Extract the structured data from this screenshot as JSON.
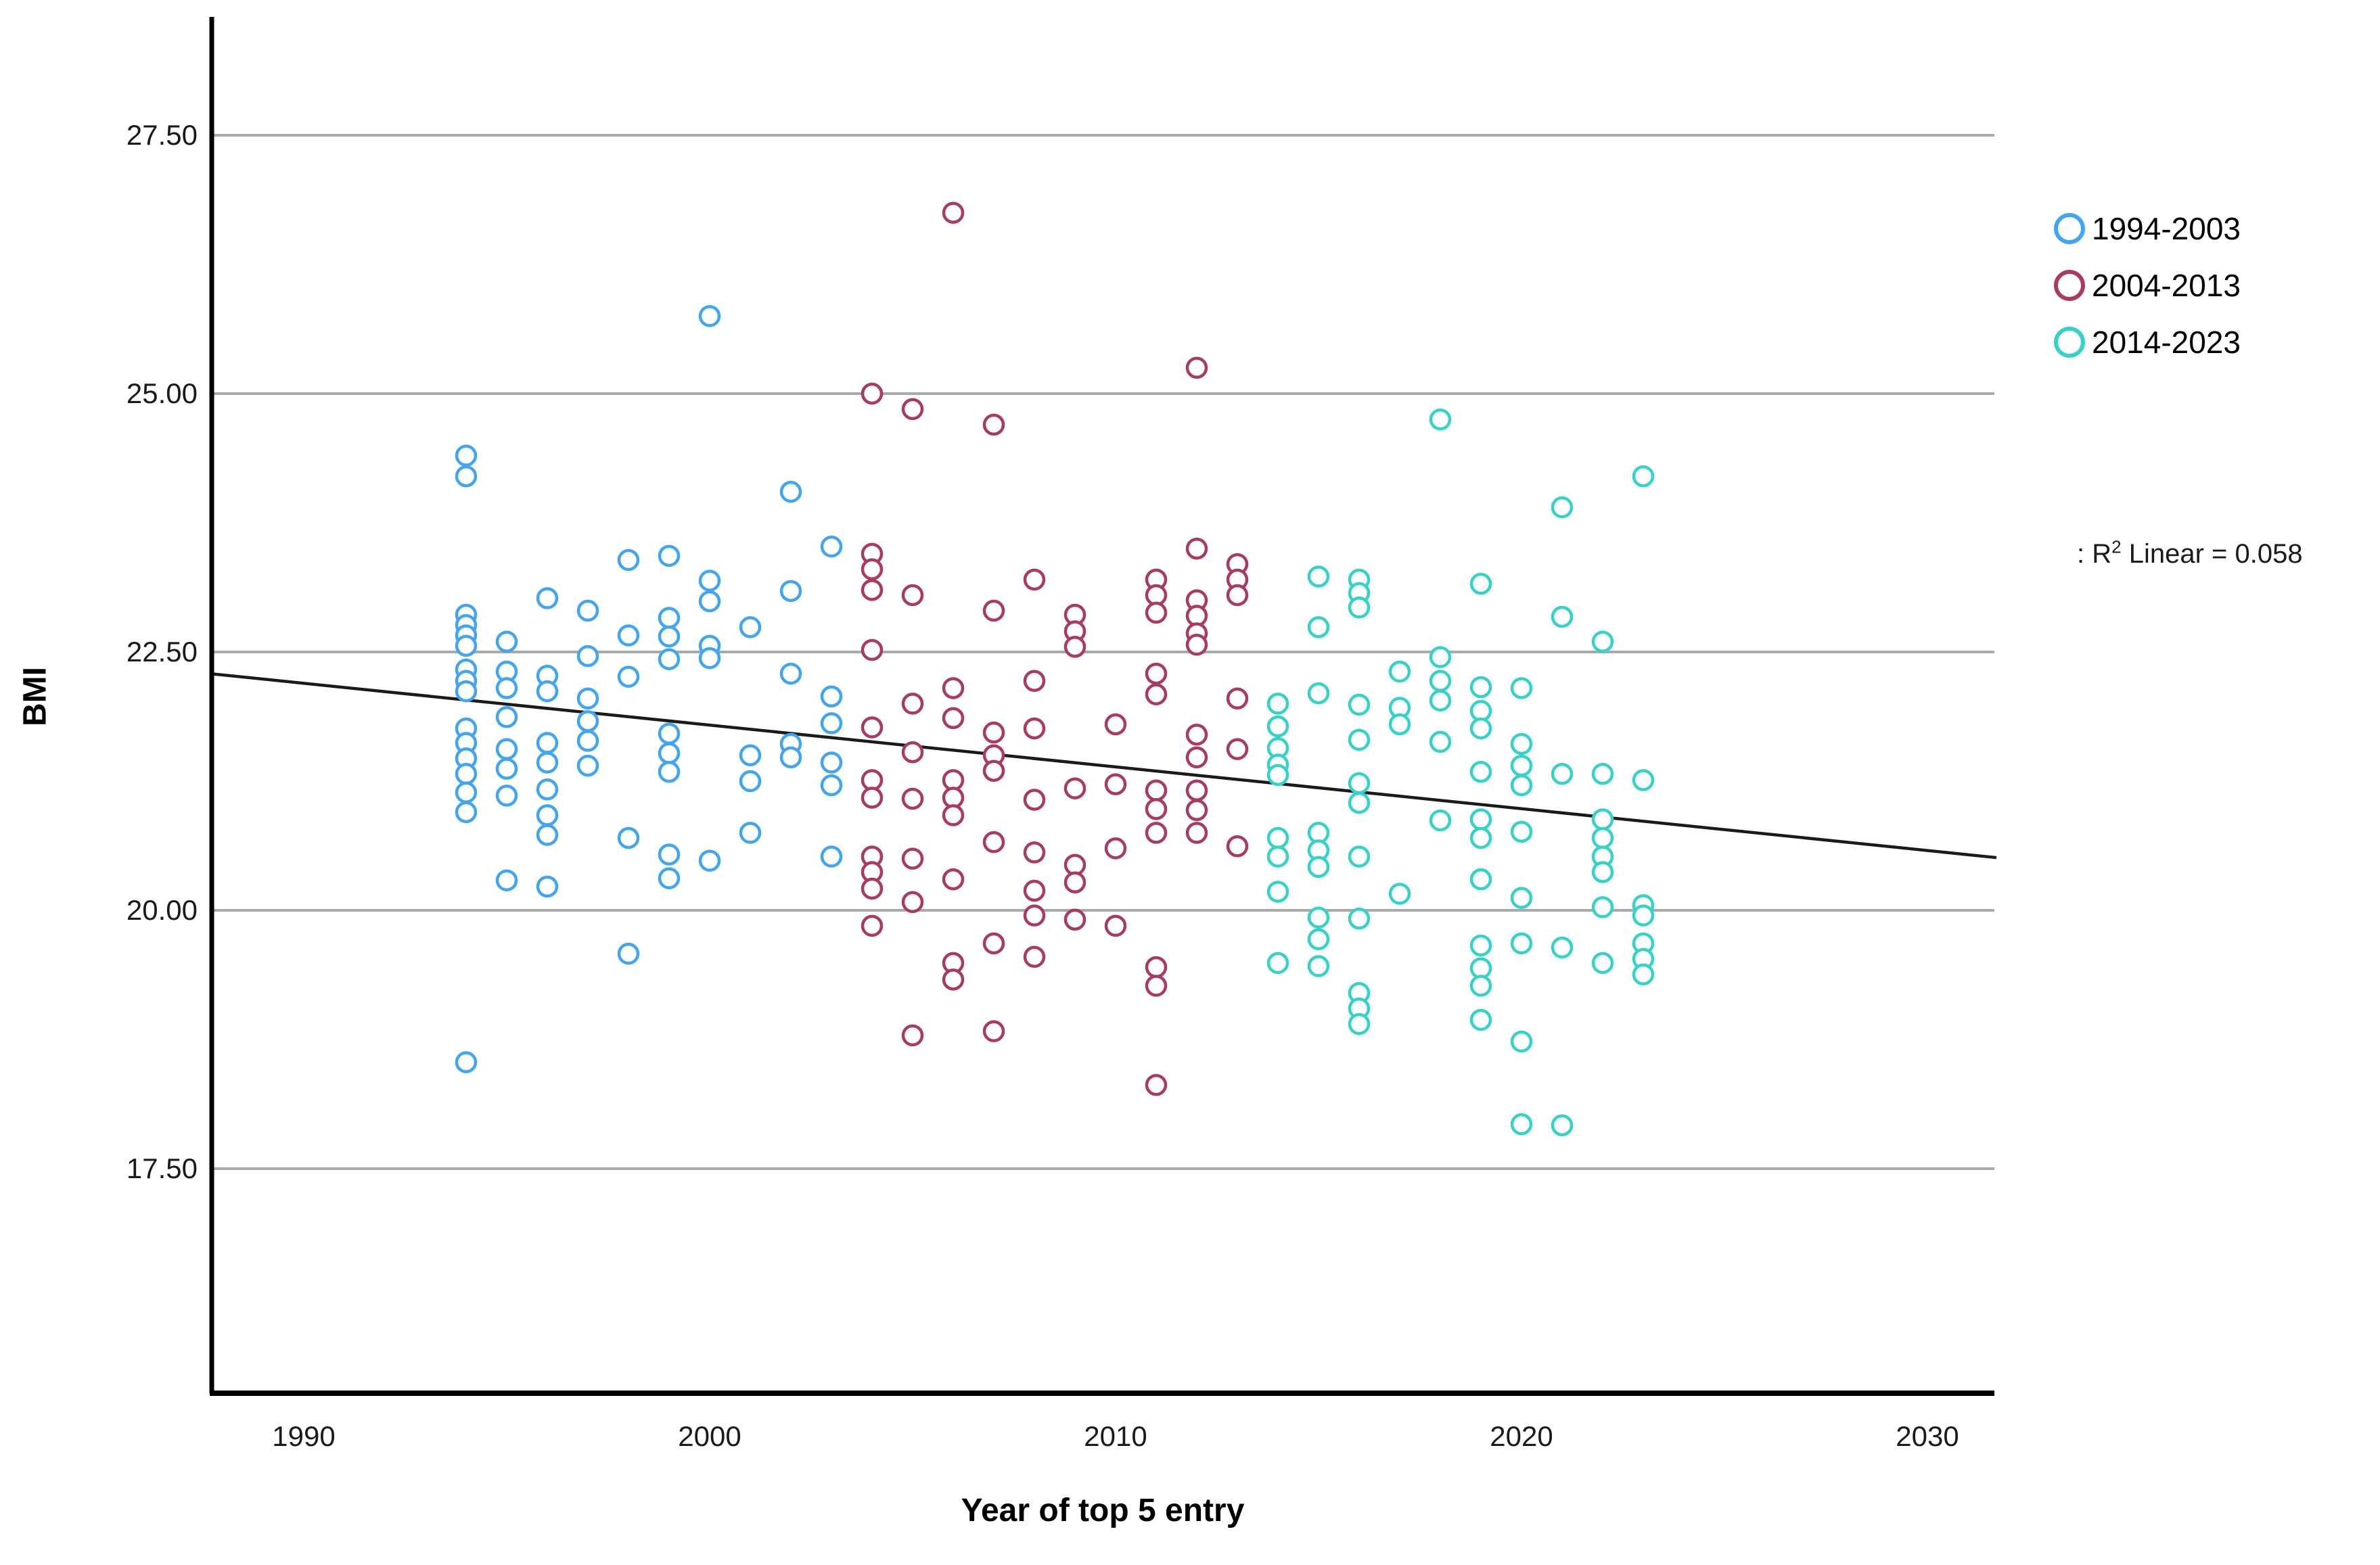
{
  "chart_data": {
    "type": "scatter",
    "title": "",
    "xlabel": "Year of top 5 entry",
    "ylabel": "BMI",
    "x_ticks": [
      1990,
      2000,
      2010,
      2020,
      2030
    ],
    "x_tick_labels": [
      "1990",
      "2000",
      "2010",
      "2020",
      "2030"
    ],
    "y_ticks": [
      27.5,
      25.0,
      22.5,
      20.0,
      17.5
    ],
    "y_tick_labels": [
      "27.50",
      "25.00",
      "22.50",
      "20.00",
      "17.50"
    ],
    "xlim": [
      1987.7,
      2031.7
    ],
    "ylim": [
      15.3,
      28.6
    ],
    "grid": "horizontal-only",
    "grid_color": "#a9a9a9",
    "axis_color": "#000000",
    "background": "#ffffff",
    "marker": "open-circle",
    "legend_position": "right-top",
    "annotation": {
      "prefix": ": R",
      "sup": "2",
      "suffix": " Linear = 0.058"
    },
    "fit_line": {
      "color": "#1a1a1a",
      "x_start": 1987.7,
      "bmi_start": 22.29,
      "x_end": 2031.7,
      "bmi_end": 20.51,
      "r2": 0.058
    },
    "series": [
      {
        "name": "1994-2003",
        "color": "#41a5f2",
        "points": [
          [
            1994,
            24.4
          ],
          [
            1994,
            24.2
          ],
          [
            1994,
            22.86
          ],
          [
            1994,
            22.76
          ],
          [
            1994,
            22.66
          ],
          [
            1994,
            22.56
          ],
          [
            1994,
            22.33
          ],
          [
            1994,
            22.22
          ],
          [
            1994,
            22.12
          ],
          [
            1994,
            21.76
          ],
          [
            1994,
            21.62
          ],
          [
            1994,
            21.47
          ],
          [
            1994,
            21.32
          ],
          [
            1994,
            21.14
          ],
          [
            1994,
            20.95
          ],
          [
            1994,
            18.53
          ],
          [
            1995,
            22.6
          ],
          [
            1995,
            22.31
          ],
          [
            1995,
            22.15
          ],
          [
            1995,
            21.87
          ],
          [
            1995,
            21.56
          ],
          [
            1995,
            21.37
          ],
          [
            1995,
            21.11
          ],
          [
            1995,
            20.29
          ],
          [
            1996,
            23.02
          ],
          [
            1996,
            22.27
          ],
          [
            1996,
            22.12
          ],
          [
            1996,
            21.62
          ],
          [
            1996,
            21.43
          ],
          [
            1996,
            21.17
          ],
          [
            1996,
            20.92
          ],
          [
            1996,
            20.73
          ],
          [
            1996,
            20.23
          ],
          [
            1997,
            22.9
          ],
          [
            1997,
            22.46
          ],
          [
            1997,
            22.05
          ],
          [
            1997,
            21.83
          ],
          [
            1997,
            21.64
          ],
          [
            1997,
            21.4
          ],
          [
            1998,
            23.39
          ],
          [
            1998,
            22.66
          ],
          [
            1998,
            22.26
          ],
          [
            1998,
            20.7
          ],
          [
            1998,
            19.58
          ],
          [
            1999,
            23.43
          ],
          [
            1999,
            22.83
          ],
          [
            1999,
            22.65
          ],
          [
            1999,
            22.43
          ],
          [
            1999,
            21.71
          ],
          [
            1999,
            21.52
          ],
          [
            1999,
            21.34
          ],
          [
            1999,
            20.54
          ],
          [
            1999,
            20.31
          ],
          [
            2000,
            25.75
          ],
          [
            2000,
            23.19
          ],
          [
            2000,
            22.99
          ],
          [
            2000,
            22.56
          ],
          [
            2000,
            22.44
          ],
          [
            2000,
            20.48
          ],
          [
            2001,
            22.74
          ],
          [
            2001,
            21.5
          ],
          [
            2001,
            21.25
          ],
          [
            2001,
            20.75
          ],
          [
            2002,
            24.05
          ],
          [
            2002,
            23.09
          ],
          [
            2002,
            22.29
          ],
          [
            2002,
            21.61
          ],
          [
            2002,
            21.48
          ],
          [
            2003,
            23.52
          ],
          [
            2003,
            22.07
          ],
          [
            2003,
            21.81
          ],
          [
            2003,
            21.43
          ],
          [
            2003,
            21.21
          ],
          [
            2003,
            20.52
          ]
        ]
      },
      {
        "name": "2004-2013",
        "color": "#a93a62",
        "points": [
          [
            2004,
            25.0
          ],
          [
            2004,
            23.45
          ],
          [
            2004,
            23.3
          ],
          [
            2004,
            23.1
          ],
          [
            2004,
            22.52
          ],
          [
            2004,
            21.77
          ],
          [
            2004,
            21.26
          ],
          [
            2004,
            21.09
          ],
          [
            2004,
            20.52
          ],
          [
            2004,
            20.37
          ],
          [
            2004,
            20.21
          ],
          [
            2004,
            19.85
          ],
          [
            2005,
            24.85
          ],
          [
            2005,
            23.05
          ],
          [
            2005,
            22.0
          ],
          [
            2005,
            21.53
          ],
          [
            2005,
            21.08
          ],
          [
            2005,
            20.5
          ],
          [
            2005,
            20.08
          ],
          [
            2005,
            18.79
          ],
          [
            2006,
            26.75
          ],
          [
            2006,
            22.15
          ],
          [
            2006,
            21.86
          ],
          [
            2006,
            21.26
          ],
          [
            2006,
            21.09
          ],
          [
            2006,
            20.92
          ],
          [
            2006,
            20.3
          ],
          [
            2006,
            19.49
          ],
          [
            2006,
            19.33
          ],
          [
            2007,
            24.7
          ],
          [
            2007,
            22.9
          ],
          [
            2007,
            21.72
          ],
          [
            2007,
            21.5
          ],
          [
            2007,
            21.35
          ],
          [
            2007,
            20.66
          ],
          [
            2007,
            19.68
          ],
          [
            2007,
            18.83
          ],
          [
            2008,
            23.2
          ],
          [
            2008,
            22.22
          ],
          [
            2008,
            21.76
          ],
          [
            2008,
            21.07
          ],
          [
            2008,
            20.56
          ],
          [
            2008,
            20.19
          ],
          [
            2008,
            19.95
          ],
          [
            2008,
            19.55
          ],
          [
            2009,
            22.86
          ],
          [
            2009,
            22.7
          ],
          [
            2009,
            22.55
          ],
          [
            2009,
            21.18
          ],
          [
            2009,
            20.44
          ],
          [
            2009,
            20.27
          ],
          [
            2009,
            19.91
          ],
          [
            2010,
            21.8
          ],
          [
            2010,
            21.22
          ],
          [
            2010,
            20.6
          ],
          [
            2010,
            19.85
          ],
          [
            2011,
            23.2
          ],
          [
            2011,
            23.05
          ],
          [
            2011,
            22.88
          ],
          [
            2011,
            22.29
          ],
          [
            2011,
            22.09
          ],
          [
            2011,
            21.16
          ],
          [
            2011,
            20.98
          ],
          [
            2011,
            20.75
          ],
          [
            2011,
            19.45
          ],
          [
            2011,
            19.27
          ],
          [
            2011,
            18.31
          ],
          [
            2012,
            25.25
          ],
          [
            2012,
            23.5
          ],
          [
            2012,
            23.0
          ],
          [
            2012,
            22.85
          ],
          [
            2012,
            22.68
          ],
          [
            2012,
            22.57
          ],
          [
            2012,
            21.7
          ],
          [
            2012,
            21.48
          ],
          [
            2012,
            21.16
          ],
          [
            2012,
            20.97
          ],
          [
            2012,
            20.75
          ],
          [
            2013,
            23.35
          ],
          [
            2013,
            23.2
          ],
          [
            2013,
            23.05
          ],
          [
            2013,
            22.05
          ],
          [
            2013,
            21.56
          ],
          [
            2013,
            20.62
          ]
        ]
      },
      {
        "name": "2014-2023",
        "color": "#35d3c7",
        "points": [
          [
            2014,
            22.0
          ],
          [
            2014,
            21.78
          ],
          [
            2014,
            21.57
          ],
          [
            2014,
            21.41
          ],
          [
            2014,
            21.31
          ],
          [
            2014,
            20.7
          ],
          [
            2014,
            20.52
          ],
          [
            2014,
            20.18
          ],
          [
            2014,
            19.49
          ],
          [
            2015,
            23.23
          ],
          [
            2015,
            22.74
          ],
          [
            2015,
            22.1
          ],
          [
            2015,
            20.75
          ],
          [
            2015,
            20.58
          ],
          [
            2015,
            20.42
          ],
          [
            2015,
            19.93
          ],
          [
            2015,
            19.72
          ],
          [
            2015,
            19.46
          ],
          [
            2016,
            23.2
          ],
          [
            2016,
            23.07
          ],
          [
            2016,
            22.93
          ],
          [
            2016,
            21.99
          ],
          [
            2016,
            21.65
          ],
          [
            2016,
            21.23
          ],
          [
            2016,
            21.04
          ],
          [
            2016,
            20.52
          ],
          [
            2016,
            19.92
          ],
          [
            2016,
            19.2
          ],
          [
            2016,
            19.05
          ],
          [
            2016,
            18.9
          ],
          [
            2017,
            22.31
          ],
          [
            2017,
            21.96
          ],
          [
            2017,
            21.8
          ],
          [
            2017,
            20.16
          ],
          [
            2018,
            24.75
          ],
          [
            2018,
            22.45
          ],
          [
            2018,
            22.22
          ],
          [
            2018,
            22.03
          ],
          [
            2018,
            21.63
          ],
          [
            2018,
            20.87
          ],
          [
            2019,
            23.16
          ],
          [
            2019,
            22.16
          ],
          [
            2019,
            21.93
          ],
          [
            2019,
            21.76
          ],
          [
            2019,
            21.34
          ],
          [
            2019,
            20.88
          ],
          [
            2019,
            20.7
          ],
          [
            2019,
            20.3
          ],
          [
            2019,
            19.66
          ],
          [
            2019,
            19.44
          ],
          [
            2019,
            19.27
          ],
          [
            2019,
            18.94
          ],
          [
            2020,
            22.15
          ],
          [
            2020,
            21.61
          ],
          [
            2020,
            21.4
          ],
          [
            2020,
            21.21
          ],
          [
            2020,
            20.76
          ],
          [
            2020,
            20.12
          ],
          [
            2020,
            19.68
          ],
          [
            2020,
            18.73
          ],
          [
            2020,
            17.93
          ],
          [
            2021,
            23.9
          ],
          [
            2021,
            22.84
          ],
          [
            2021,
            21.32
          ],
          [
            2021,
            19.64
          ],
          [
            2021,
            17.92
          ],
          [
            2022,
            22.6
          ],
          [
            2022,
            21.32
          ],
          [
            2022,
            20.88
          ],
          [
            2022,
            20.7
          ],
          [
            2022,
            20.52
          ],
          [
            2022,
            20.37
          ],
          [
            2022,
            20.03
          ],
          [
            2022,
            19.49
          ],
          [
            2023,
            24.2
          ],
          [
            2023,
            21.26
          ],
          [
            2023,
            20.05
          ],
          [
            2023,
            19.95
          ],
          [
            2023,
            19.68
          ],
          [
            2023,
            19.53
          ],
          [
            2023,
            19.38
          ]
        ]
      }
    ]
  },
  "legend": {
    "items": [
      {
        "label": "1994-2003",
        "color": "#41a5f2"
      },
      {
        "label": "2004-2013",
        "color": "#a93a62"
      },
      {
        "label": "2014-2023",
        "color": "#35d3c7"
      }
    ]
  }
}
